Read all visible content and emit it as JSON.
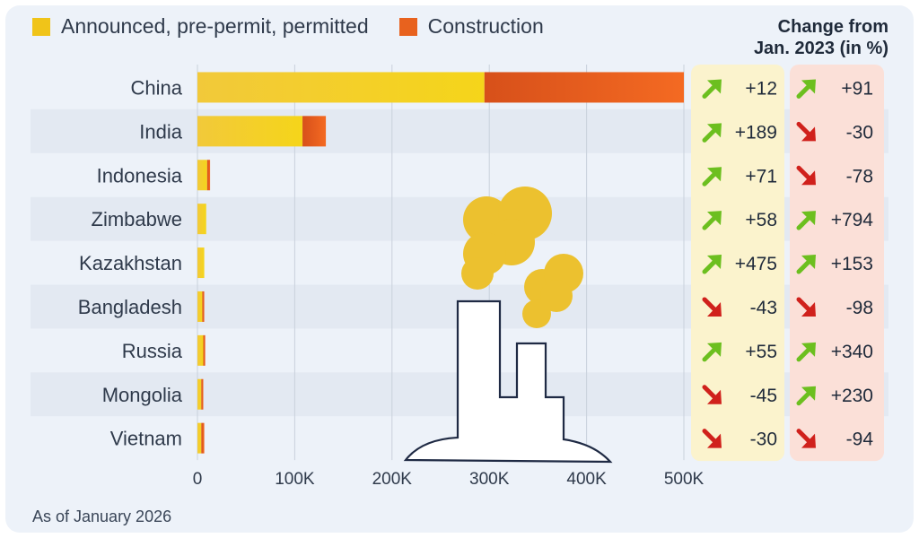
{
  "legend": {
    "items": [
      {
        "label": "Announced, pre-permit, permitted",
        "color": "#f0c419"
      },
      {
        "label": "Construction",
        "color": "#e8621e"
      }
    ]
  },
  "change_header": {
    "line1": "Change from",
    "line2": "Jan. 2023 (in %)"
  },
  "footnote": "As of January 2026",
  "colors": {
    "announced": "#f0c419",
    "construction": "#e8621e",
    "up_arrow": "#6cbf1f",
    "down_arrow": "#d0211c",
    "col1_bg": "#fbf3cd",
    "col2_bg": "#fbe0d8",
    "stripe": "#e3e9f2"
  },
  "chart_data": {
    "type": "bar",
    "orientation": "horizontal",
    "stacked": true,
    "categories": [
      "China",
      "India",
      "Indonesia",
      "Zimbabwe",
      "Kazakhstan",
      "Bangladesh",
      "Russia",
      "Mongolia",
      "Vietnam"
    ],
    "series": [
      {
        "name": "Announced, pre-permit, permitted",
        "values": [
          295000,
          108000,
          10000,
          9000,
          7000,
          5000,
          6000,
          4000,
          4000
        ]
      },
      {
        "name": "Construction",
        "values": [
          205000,
          24000,
          3000,
          0,
          0,
          2000,
          2000,
          2000,
          3000
        ]
      }
    ],
    "xlim": [
      0,
      500000
    ],
    "xticks": [
      0,
      100000,
      200000,
      300000,
      400000,
      500000
    ],
    "xtick_labels": [
      "0",
      "100K",
      "200K",
      "300K",
      "400K",
      "500K"
    ],
    "change_columns": [
      {
        "values": [
          "+12",
          "+189",
          "+71",
          "+58",
          "+475",
          "-43",
          "+55",
          "-45",
          "-30"
        ]
      },
      {
        "values": [
          "+91",
          "-30",
          "-78",
          "+794",
          "+153",
          "-98",
          "+340",
          "+230",
          "-94"
        ]
      }
    ],
    "grid": true,
    "legend_position": "top-left"
  }
}
